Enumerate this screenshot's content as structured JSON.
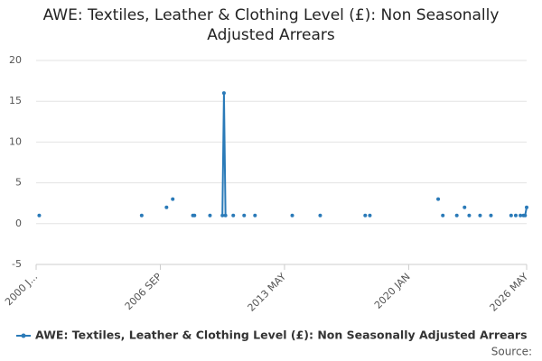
{
  "chart_data": {
    "type": "line",
    "title": "AWE: Textiles, Leather & Clothing Level (£): Non Seasonally Adjusted Arrears",
    "x": [
      "2000-03",
      "2000-04",
      "2005-09",
      "2005-10",
      "2007-01",
      "2007-02",
      "2007-05",
      "2007-06",
      "2008-06",
      "2008-07",
      "2008-08",
      "2009-05",
      "2009-06",
      "2010-01",
      "2010-02",
      "2010-03",
      "2010-04",
      "2010-08",
      "2010-09",
      "2011-03",
      "2011-04",
      "2011-10",
      "2011-11",
      "2013-10",
      "2013-11",
      "2015-04",
      "2015-05",
      "2017-09",
      "2017-10",
      "2017-12",
      "2018-01",
      "2021-08",
      "2021-09",
      "2021-11",
      "2021-12",
      "2022-08",
      "2022-09",
      "2023-01",
      "2023-02",
      "2023-04",
      "2023-05",
      "2023-11",
      "2023-12",
      "2024-06",
      "2024-07",
      "2025-07",
      "2025-08",
      "2025-10",
      "2025-11",
      "2026-01",
      "2026-02",
      "2026-03",
      "2026-04",
      "2026-05"
    ],
    "series": [
      {
        "name": "AWE: Textiles, Leather & Clothing Level (£): Non Seasonally Adjusted Arrears",
        "color": "#2a7ab8",
        "values": [
          1,
          null,
          1,
          null,
          2,
          null,
          3,
          null,
          1,
          1,
          null,
          1,
          null,
          1,
          16,
          1,
          null,
          1,
          null,
          1,
          null,
          1,
          null,
          1,
          null,
          1,
          null,
          1,
          null,
          1,
          null,
          3,
          null,
          1,
          null,
          1,
          null,
          2,
          null,
          1,
          null,
          1,
          null,
          1,
          null,
          1,
          null,
          1,
          null,
          1,
          null,
          1,
          1,
          2
        ]
      }
    ],
    "xlim": [
      "2000-01",
      "2026-05"
    ],
    "xticks": [
      {
        "value": "2000-01",
        "label": "2000 J..."
      },
      {
        "value": "2006-09",
        "label": "2006 SEP"
      },
      {
        "value": "2013-05",
        "label": "2013 MAY"
      },
      {
        "value": "2020-01",
        "label": "2020 JAN"
      },
      {
        "value": "2026-05",
        "label": "2026 MAY"
      }
    ],
    "ylim": [
      -5,
      20
    ],
    "yticks": [
      -5,
      0,
      5,
      10,
      15,
      20
    ],
    "grid": true,
    "legend": "bottom",
    "source": "Source:"
  }
}
